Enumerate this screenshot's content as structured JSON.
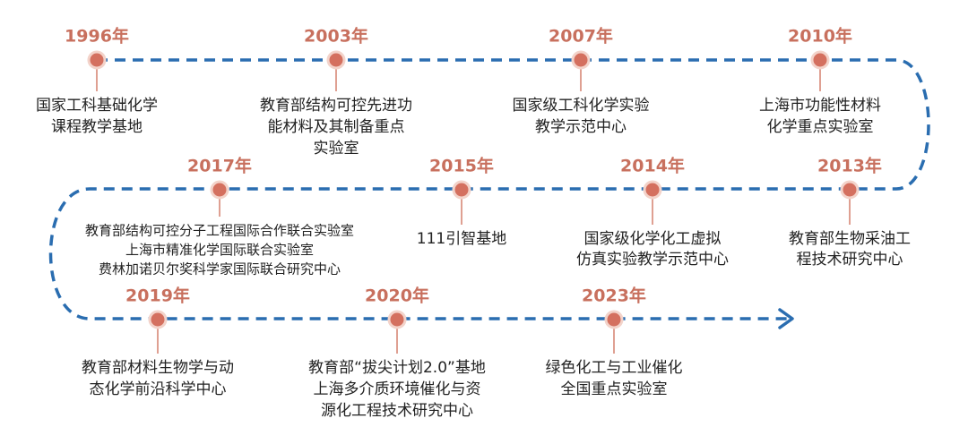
{
  "events": [
    {
      "year": "1996年",
      "lines": [
        "国家工科基础化学",
        "课程教学基地"
      ]
    },
    {
      "year": "2003年",
      "lines": [
        "教育部结构可控先进功",
        "能材料及其制备重点",
        "实验室"
      ]
    },
    {
      "year": "2007年",
      "lines": [
        "国家级工科化学实验",
        "教学示范中心"
      ]
    },
    {
      "year": "2010年",
      "lines": [
        "上海市功能性材料",
        "化学重点实验室"
      ]
    },
    {
      "year": "2017年",
      "lines": [
        "教育部结构可控分子工程国际合作联合实验室",
        "上海市精准化学国际联合实验室",
        "费林加诺贝尔奖科学家国际联合研究中心"
      ]
    },
    {
      "year": "2015年",
      "lines": [
        "111引智基地"
      ]
    },
    {
      "year": "2014年",
      "lines": [
        "国家级化学化工虚拟",
        "仿真实验教学示范中心"
      ]
    },
    {
      "year": "2013年",
      "lines": [
        "教育部生物采油工",
        "程技术研究中心"
      ]
    },
    {
      "year": "2019年",
      "lines": [
        "教育部材料生物学与动",
        "态化学前沿科学中心"
      ]
    },
    {
      "year": "2020年",
      "lines": [
        "教育部“拔尖计划2.0”基地",
        "上海多介质环境催化与资",
        "源化工程技术研究中心"
      ]
    },
    {
      "year": "2023年",
      "lines": [
        "绿色化工与工业催化",
        "全国重点实验室"
      ]
    }
  ]
}
